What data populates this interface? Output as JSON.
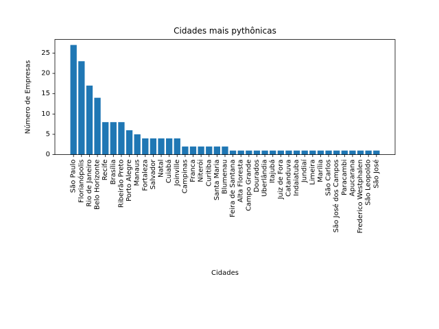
{
  "chart_data": {
    "type": "bar",
    "title": "Cidades mais pythônicas",
    "xlabel": "Cidades",
    "ylabel": "Número de Empresas",
    "ylim": [
      0,
      28.35
    ],
    "yticks": [
      0,
      5,
      10,
      15,
      20,
      25
    ],
    "grid": false,
    "bar_color": "#1f77b4",
    "categories": [
      "São Paulo",
      "Florianópolis",
      "Rio de Janeiro",
      "Belo Horizonte",
      "Recife",
      "Brasília",
      "Ribeirão Preto",
      "Porto Alegre",
      "Manaus",
      "Fortaleza",
      "Salvador",
      "Natal",
      "Cuiabá",
      "Joinville",
      "Campinas",
      "Franca",
      "Niterói",
      "Curitiba",
      "Santa Maria",
      "Blumenau",
      "Feira de Santana",
      "Alta Floresta",
      "Campo Grande",
      "Dourados",
      "Uberlândia",
      "Itajubá",
      "Juiz de Fora",
      "Catanduva",
      "Indaiatuba",
      "Jundiaí",
      "Limeira",
      "Marília",
      "São Carlos",
      "São José dos Campos",
      "Paracambi",
      "Apucarana",
      "Frederico Westphalen",
      "São Leopoldo",
      "São José"
    ],
    "values": [
      27,
      23,
      17,
      14,
      8,
      8,
      8,
      6,
      5,
      4,
      4,
      4,
      4,
      4,
      2,
      2,
      2,
      2,
      2,
      2,
      1,
      1,
      1,
      1,
      1,
      1,
      1,
      1,
      1,
      1,
      1,
      1,
      1,
      1,
      1,
      1,
      1,
      1,
      1
    ]
  }
}
